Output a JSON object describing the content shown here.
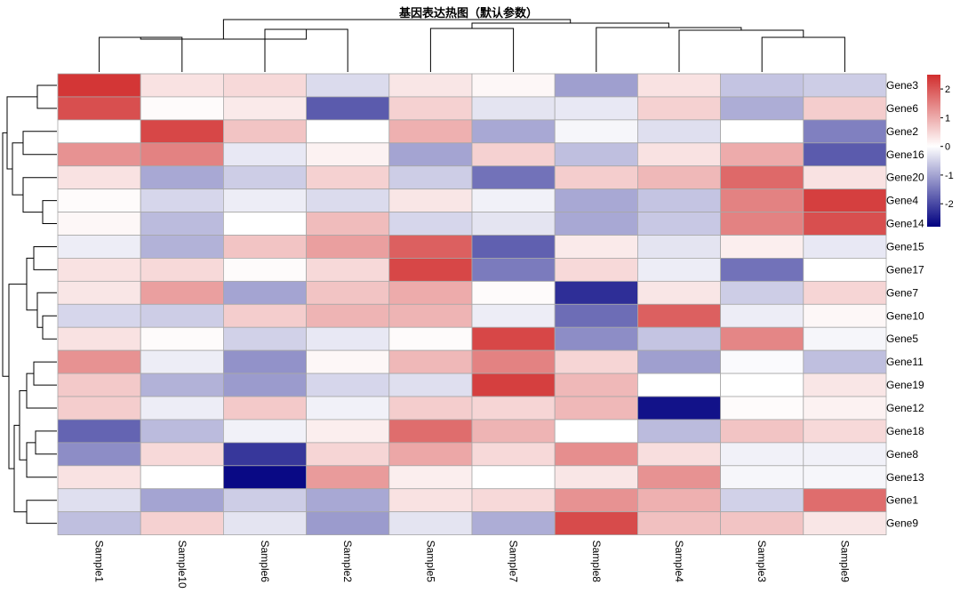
{
  "chart_data": {
    "type": "heatmap",
    "title": "基因表达热图（默认参数）",
    "rows": [
      "Gene3",
      "Gene6",
      "Gene2",
      "Gene16",
      "Gene20",
      "Gene4",
      "Gene14",
      "Gene15",
      "Gene17",
      "Gene7",
      "Gene10",
      "Gene5",
      "Gene11",
      "Gene19",
      "Gene12",
      "Gene18",
      "Gene8",
      "Gene13",
      "Gene1",
      "Gene9"
    ],
    "columns": [
      "Sample1",
      "Sample10",
      "Sample6",
      "Sample2",
      "Sample5",
      "Sample7",
      "Sample8",
      "Sample4",
      "Sample3",
      "Sample9"
    ],
    "values": [
      [
        2.4,
        0.35,
        0.45,
        -0.4,
        0.3,
        0.1,
        -1.05,
        0.35,
        -0.65,
        -0.55
      ],
      [
        2.1,
        0.05,
        0.25,
        -1.8,
        0.55,
        -0.3,
        -0.25,
        0.55,
        -0.9,
        0.6
      ],
      [
        0.0,
        2.2,
        0.7,
        0.0,
        0.95,
        -0.95,
        -0.1,
        -0.35,
        0.0,
        -1.4
      ],
      [
        1.3,
        1.5,
        -0.25,
        0.15,
        -1.0,
        0.55,
        -0.7,
        0.35,
        1.0,
        -1.8
      ],
      [
        0.35,
        -0.95,
        -0.55,
        0.55,
        -0.55,
        -1.55,
        0.6,
        0.85,
        1.8,
        0.35
      ],
      [
        0.05,
        -0.45,
        -0.2,
        -0.4,
        0.3,
        -0.15,
        -0.95,
        -0.65,
        1.5,
        2.3
      ],
      [
        0.1,
        -0.75,
        0.0,
        0.8,
        -0.45,
        -0.3,
        -0.95,
        -0.6,
        1.5,
        2.1
      ],
      [
        -0.2,
        -0.85,
        0.7,
        1.15,
        1.9,
        -1.75,
        0.25,
        -0.3,
        0.2,
        -0.25
      ],
      [
        0.35,
        0.45,
        0.05,
        0.45,
        2.2,
        -1.45,
        0.45,
        -0.2,
        -1.55,
        0.0
      ],
      [
        0.3,
        1.15,
        -1.0,
        0.7,
        1.0,
        0.05,
        -2.3,
        0.3,
        -0.55,
        0.5
      ],
      [
        -0.45,
        -0.55,
        0.6,
        0.9,
        0.9,
        -0.2,
        -1.6,
        1.9,
        -0.2,
        0.1
      ],
      [
        0.35,
        0.05,
        -0.5,
        -0.25,
        0.05,
        2.2,
        -1.25,
        -0.65,
        1.45,
        -0.1
      ],
      [
        1.3,
        -0.2,
        -1.2,
        0.1,
        0.85,
        1.5,
        0.5,
        -1.05,
        -0.05,
        -0.7
      ],
      [
        0.65,
        -0.85,
        -1.1,
        -0.45,
        -0.35,
        2.3,
        0.85,
        0.0,
        0.0,
        0.3
      ],
      [
        0.6,
        -0.2,
        0.65,
        -0.15,
        0.6,
        0.5,
        0.85,
        -2.6,
        0.05,
        0.15
      ],
      [
        -1.7,
        -0.75,
        -0.15,
        0.2,
        1.75,
        0.9,
        0.0,
        -0.75,
        0.7,
        0.45
      ],
      [
        -1.25,
        0.45,
        -2.2,
        0.5,
        1.05,
        0.45,
        1.35,
        0.4,
        -0.15,
        -0.15
      ],
      [
        0.35,
        0.0,
        -2.7,
        1.2,
        0.2,
        0.0,
        0.3,
        1.3,
        -0.1,
        -0.1
      ],
      [
        -0.35,
        -1.0,
        -0.55,
        -0.95,
        0.35,
        0.45,
        1.3,
        0.95,
        -0.5,
        1.75
      ],
      [
        -0.7,
        0.55,
        -0.3,
        -1.1,
        -0.3,
        -0.9,
        2.15,
        0.75,
        0.7,
        0.3
      ]
    ],
    "color_scale": {
      "min": -2.8,
      "max": 2.5,
      "low_color": "#000080",
      "mid_color": "#ffffff",
      "high_color": "#d12e2e"
    },
    "legend": {
      "position": "right",
      "ticks": [
        "2",
        "1",
        "0",
        "-1",
        "-2"
      ]
    },
    "grid": true
  }
}
